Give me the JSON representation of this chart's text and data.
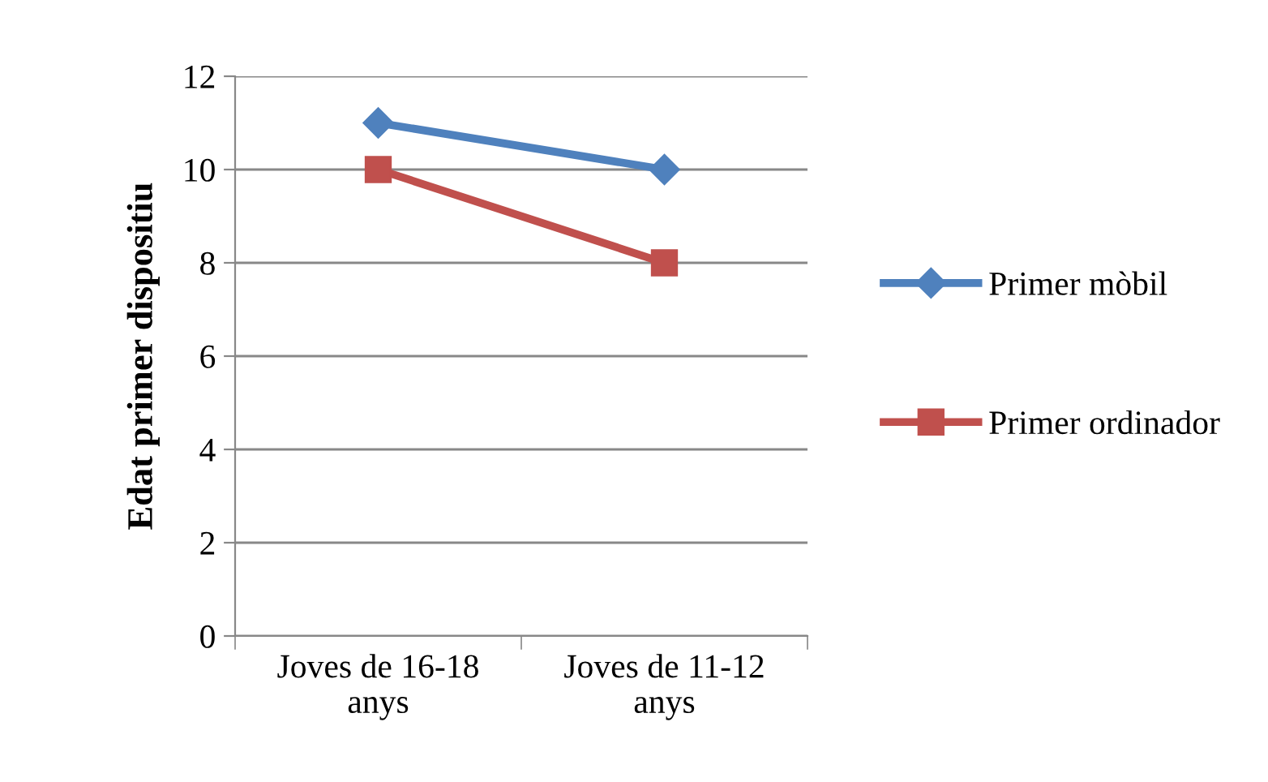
{
  "chart_data": {
    "type": "line",
    "ylabel": "Edat primer dispositiu",
    "categories": [
      "Joves de 16-18\nanys",
      "Joves de 11-12\nanys"
    ],
    "series": [
      {
        "name": "Primer mòbil",
        "color": "#4f81bd",
        "marker": "diamond",
        "values": [
          11,
          10
        ]
      },
      {
        "name": "Primer ordinador",
        "color": "#c0504d",
        "marker": "square",
        "values": [
          10,
          8
        ]
      }
    ],
    "ylim": [
      0,
      12
    ],
    "yticks": [
      0,
      2,
      4,
      6,
      8,
      10,
      12
    ],
    "grid": "y",
    "legend": "right",
    "line_style": "solid"
  }
}
